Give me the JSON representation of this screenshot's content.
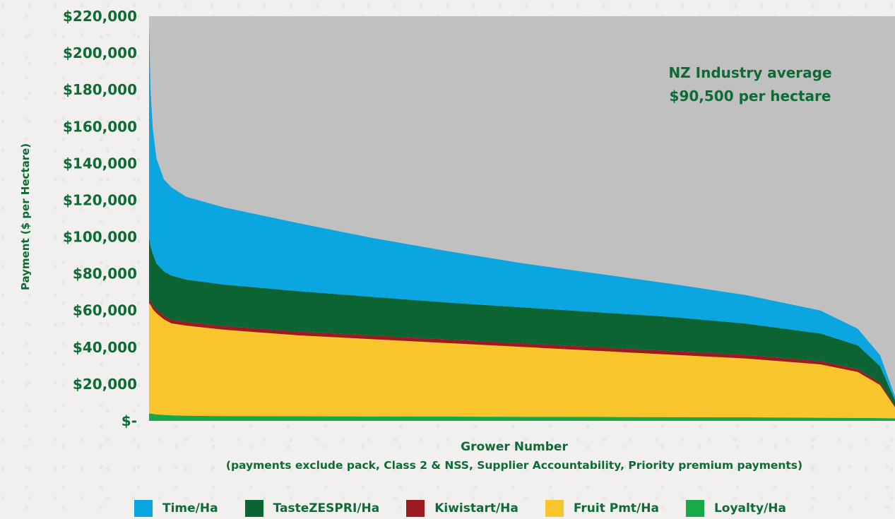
{
  "chart_data": {
    "type": "area",
    "ylabel": "Payment ($ per Hectare)",
    "xlabel": "Grower Number",
    "xlabel_note": "(payments exclude pack, Class 2 & NSS, Supplier Accountability, Priority premium payments)",
    "ylim": [
      0,
      220000
    ],
    "yticks": [
      {
        "value": 0,
        "label": "$-"
      },
      {
        "value": 20000,
        "label": "$20,000"
      },
      {
        "value": 40000,
        "label": "$40,000"
      },
      {
        "value": 60000,
        "label": "$60,000"
      },
      {
        "value": 80000,
        "label": "$80,000"
      },
      {
        "value": 100000,
        "label": "$100,000"
      },
      {
        "value": 120000,
        "label": "$120,000"
      },
      {
        "value": 140000,
        "label": "$140,000"
      },
      {
        "value": 160000,
        "label": "$160,000"
      },
      {
        "value": 180000,
        "label": "$180,000"
      },
      {
        "value": 200000,
        "label": "$200,000"
      },
      {
        "value": 220000,
        "label": "$220,000"
      }
    ],
    "plot_background": "#c0c0c0",
    "annotation": [
      "NZ Industry average",
      "$90,500 per hectare"
    ],
    "legend_position": "bottom",
    "x": [
      0,
      0.002,
      0.005,
      0.01,
      0.02,
      0.03,
      0.05,
      0.1,
      0.2,
      0.3,
      0.4,
      0.5,
      0.6,
      0.7,
      0.8,
      0.9,
      0.95,
      0.98,
      1.0
    ],
    "series": [
      {
        "name": "Loyalty/Ha",
        "color": "#18a84a",
        "values": [
          4000,
          4000,
          3800,
          3500,
          3200,
          3000,
          2800,
          2600,
          2500,
          2400,
          2300,
          2200,
          2100,
          2000,
          1900,
          1700,
          1600,
          1500,
          1400
        ]
      },
      {
        "name": "Fruit Pmt/Ha",
        "color": "#f9c52c",
        "values": [
          60000,
          59000,
          57000,
          55000,
          52000,
          50000,
          49000,
          47000,
          44000,
          42000,
          40000,
          38000,
          36000,
          34000,
          32000,
          29000,
          25000,
          18000,
          6000
        ]
      },
      {
        "name": "Kiwistart/Ha",
        "color": "#9b1b1e",
        "values": [
          2000,
          2000,
          2000,
          2000,
          2000,
          2000,
          2000,
          2000,
          2000,
          2000,
          2000,
          2000,
          2000,
          2000,
          2000,
          1800,
          1500,
          1200,
          800
        ]
      },
      {
        "name": "TasteZESPRI/Ha",
        "color": "#0c6433",
        "values": [
          34000,
          30000,
          28000,
          25000,
          24000,
          24000,
          23000,
          22500,
          22000,
          21000,
          20000,
          19500,
          19000,
          18500,
          17000,
          15000,
          13000,
          9000,
          3000
        ]
      },
      {
        "name": "Time/Ha",
        "color": "#0ba5e0",
        "values": [
          115000,
          85000,
          68000,
          57000,
          50000,
          48000,
          45000,
          42000,
          37000,
          32000,
          28000,
          24000,
          21000,
          18000,
          15500,
          12500,
          9000,
          6000,
          2000
        ]
      }
    ]
  }
}
